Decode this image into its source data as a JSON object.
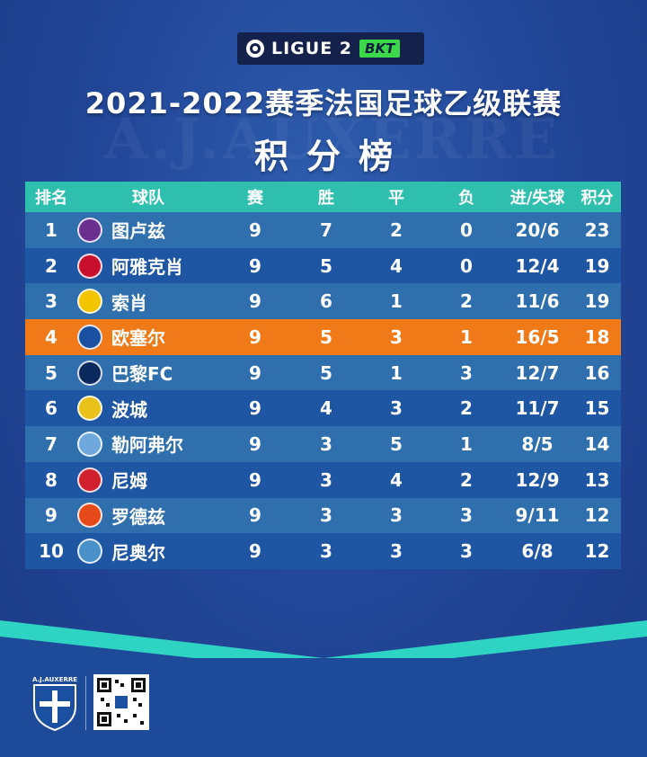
{
  "league_logo": {
    "text": "LIGUE 2",
    "sponsor": "BKT",
    "sponsor_color": "#3bd84a"
  },
  "title": {
    "line1": "2021-2022赛季法国足球乙级联赛",
    "line2": "积分榜"
  },
  "watermark": "A.J.AUXERRE",
  "table": {
    "headers": {
      "rank": "排名",
      "team": "球队",
      "played": "赛",
      "won": "胜",
      "drawn": "平",
      "lost": "负",
      "goals": "进/失球",
      "points": "积分"
    },
    "rows": [
      {
        "rank": "1",
        "team": "图卢兹",
        "played": "9",
        "won": "7",
        "drawn": "2",
        "lost": "0",
        "goals": "20/6",
        "points": "23",
        "badge_color": "#6b2f8f"
      },
      {
        "rank": "2",
        "team": "阿雅克肖",
        "played": "9",
        "won": "5",
        "drawn": "4",
        "lost": "0",
        "goals": "12/4",
        "points": "19",
        "badge_color": "#c8102e"
      },
      {
        "rank": "3",
        "team": "索肖",
        "played": "9",
        "won": "6",
        "drawn": "1",
        "lost": "2",
        "goals": "11/6",
        "points": "19",
        "badge_color": "#f2c500"
      },
      {
        "rank": "4",
        "team": "欧塞尔",
        "played": "9",
        "won": "5",
        "drawn": "3",
        "lost": "1",
        "goals": "16/5",
        "points": "18",
        "badge_color": "#1b4fa0"
      },
      {
        "rank": "5",
        "team": "巴黎FC",
        "played": "9",
        "won": "5",
        "drawn": "1",
        "lost": "3",
        "goals": "12/7",
        "points": "16",
        "badge_color": "#0a2a5e"
      },
      {
        "rank": "6",
        "team": "波城",
        "played": "9",
        "won": "4",
        "drawn": "3",
        "lost": "2",
        "goals": "11/7",
        "points": "15",
        "badge_color": "#e8c21a"
      },
      {
        "rank": "7",
        "team": "勒阿弗尔",
        "played": "9",
        "won": "3",
        "drawn": "5",
        "lost": "1",
        "goals": "8/5",
        "points": "14",
        "badge_color": "#6fa8dc"
      },
      {
        "rank": "8",
        "team": "尼姆",
        "played": "9",
        "won": "3",
        "drawn": "4",
        "lost": "2",
        "goals": "12/9",
        "points": "13",
        "badge_color": "#d0202e"
      },
      {
        "rank": "9",
        "team": "罗德兹",
        "played": "9",
        "won": "3",
        "drawn": "3",
        "lost": "3",
        "goals": "9/11",
        "points": "12",
        "badge_color": "#e64a19"
      },
      {
        "rank": "10",
        "team": "尼奥尔",
        "played": "9",
        "won": "3",
        "drawn": "3",
        "lost": "3",
        "goals": "6/8",
        "points": "12",
        "badge_color": "#4a90c8"
      }
    ],
    "highlight_rank": "4",
    "highlight_color": "#f07a18",
    "header_color": "#2fbfae"
  },
  "footer": {
    "crest_label": "A.J.AUXERRE"
  }
}
